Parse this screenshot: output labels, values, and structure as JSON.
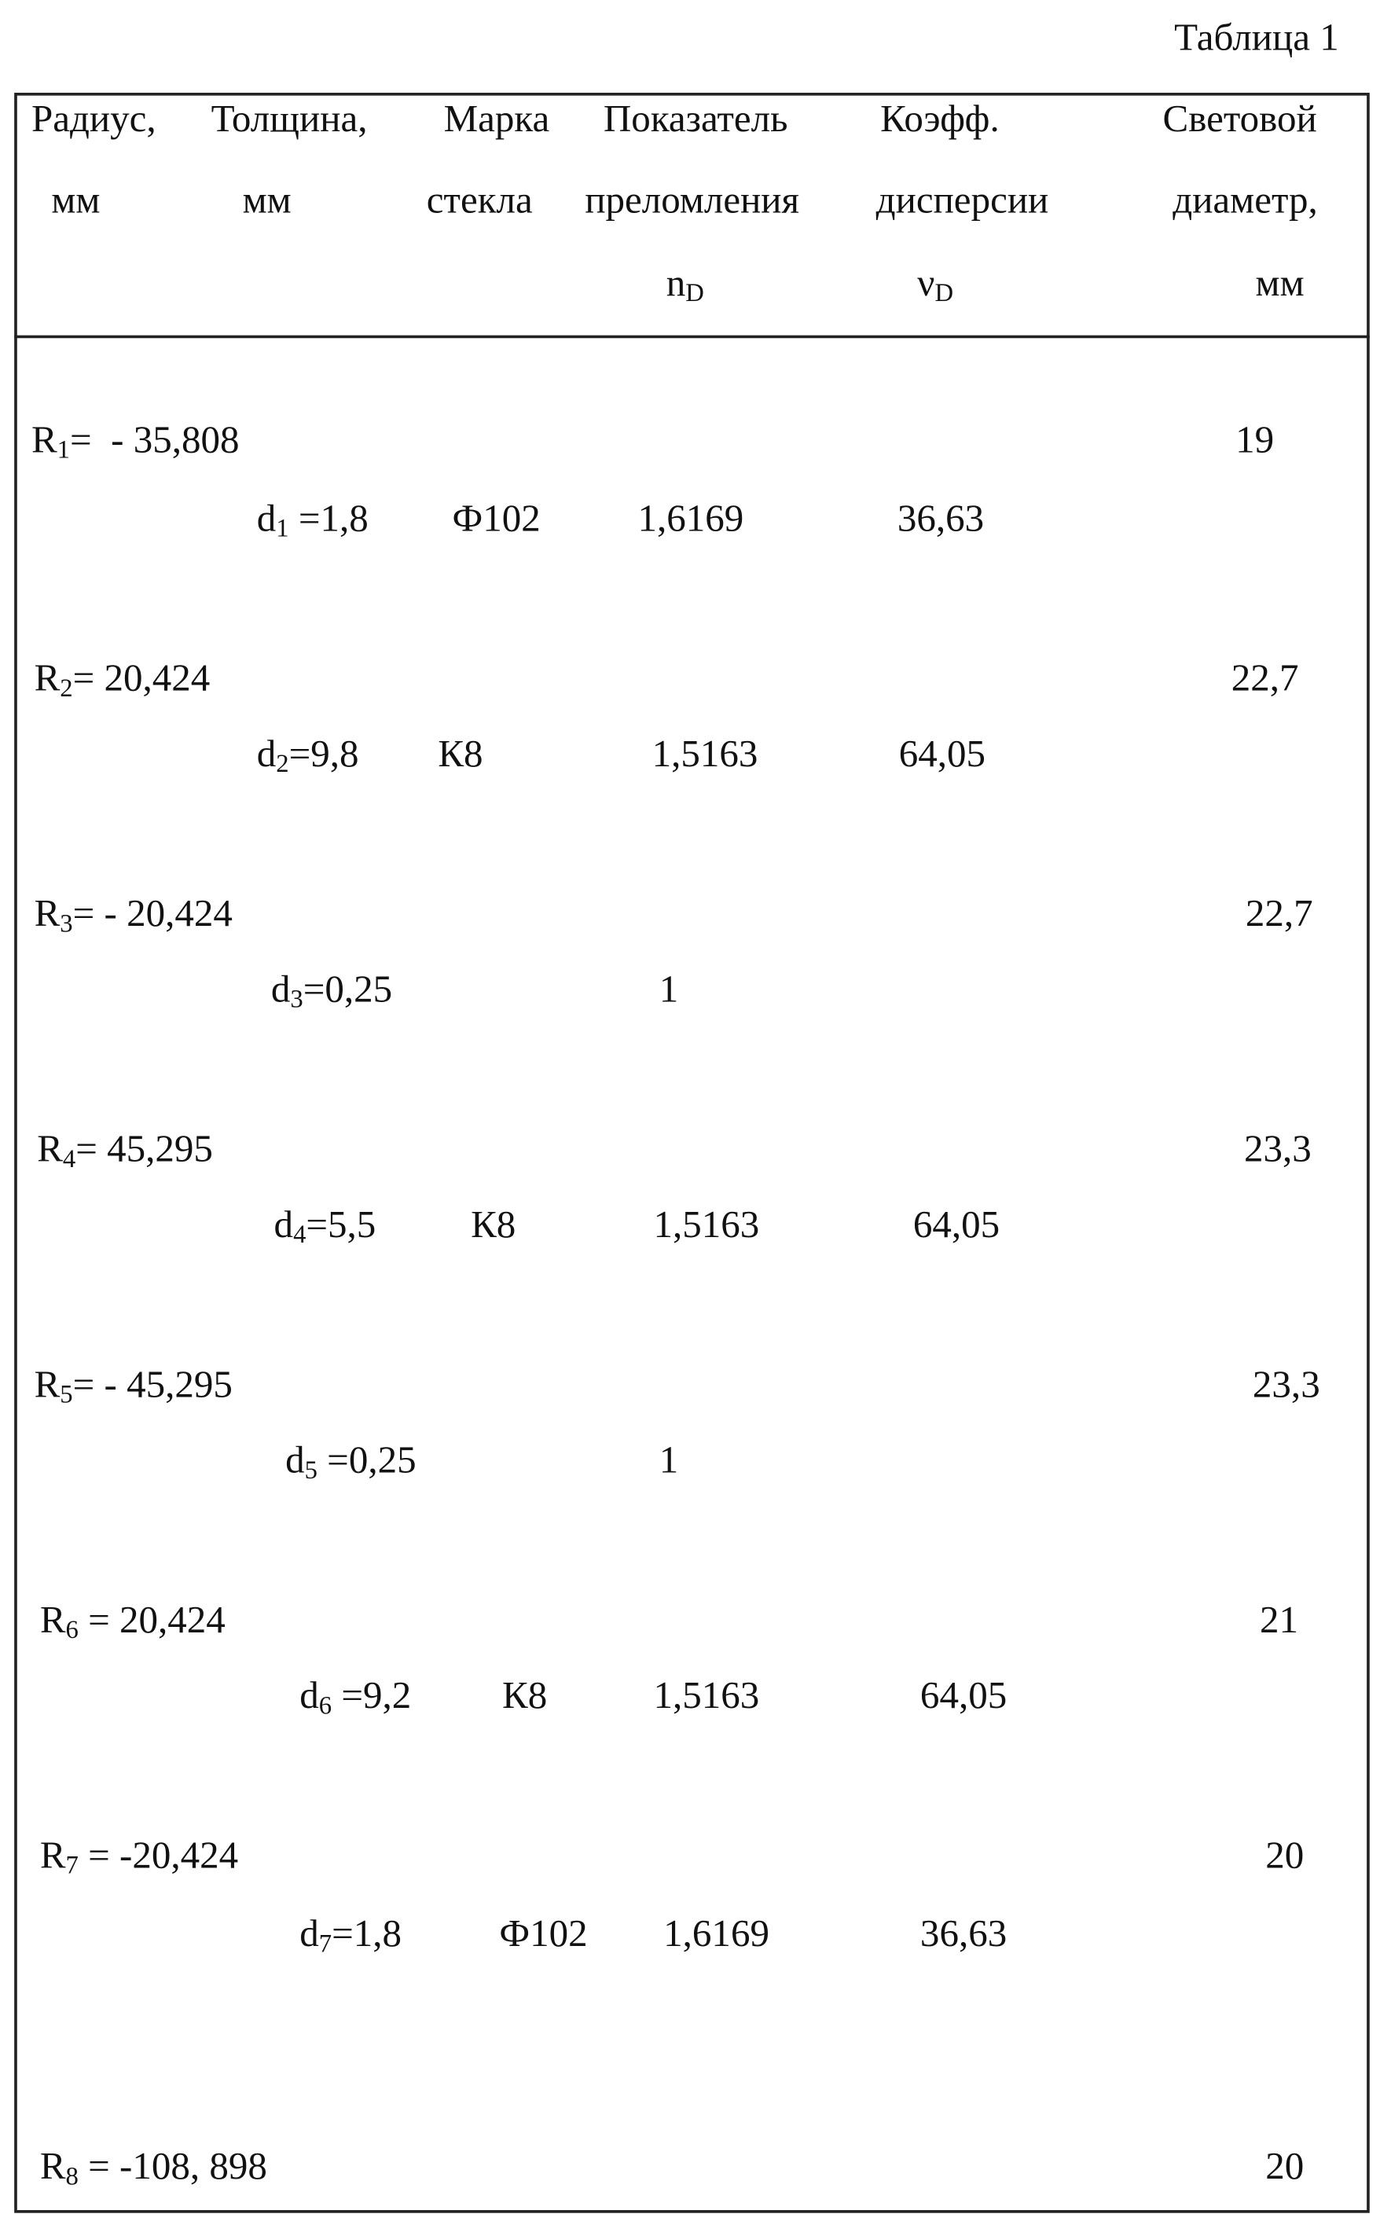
{
  "caption": "Таблица 1",
  "header": {
    "columns": [
      {
        "lines": [
          "Радиус,",
          "мм"
        ]
      },
      {
        "lines": [
          "Толщина,",
          "мм"
        ]
      },
      {
        "lines": [
          "Марка",
          "стекла"
        ]
      },
      {
        "lines": [
          "Показатель",
          "преломления"
        ],
        "symbol": "n",
        "index": "D"
      },
      {
        "lines": [
          "Коэфф.",
          "дисперсии"
        ],
        "symbol": "ν",
        "index": "D"
      },
      {
        "lines": [
          "Световой",
          "диаметр,",
          "мм"
        ]
      }
    ]
  },
  "surfaces": [
    {
      "symbol": "R",
      "index": "1",
      "value": "=  - 35,808",
      "diameter": "19"
    },
    {
      "symbol": "R",
      "index": "2",
      "value": "= 20,424",
      "diameter": "22,7"
    },
    {
      "symbol": "R",
      "index": "3",
      "value": "= - 20,424",
      "diameter": "22,7"
    },
    {
      "symbol": "R",
      "index": "4",
      "value": "= 45,295",
      "diameter": "23,3"
    },
    {
      "symbol": "R",
      "index": "5",
      "value": "= - 45,295",
      "diameter": "23,3"
    },
    {
      "symbol": "R",
      "index": "6",
      "value": " = 20,424",
      "diameter": "21"
    },
    {
      "symbol": "R",
      "index": "7",
      "value": " = -20,424",
      "diameter": "20"
    },
    {
      "symbol": "R",
      "index": "8",
      "value": " = -108, 898",
      "diameter": "20"
    }
  ],
  "gaps": [
    {
      "symbol": "d",
      "index": "1",
      "value": " =1,8",
      "glass": "Ф102",
      "n": "1,6169",
      "v": "36,63"
    },
    {
      "symbol": "d",
      "index": "2",
      "value": "=9,8",
      "glass": "К8",
      "n": "1,5163",
      "v": "64,05"
    },
    {
      "symbol": "d",
      "index": "3",
      "value": "=0,25",
      "n": "1"
    },
    {
      "symbol": "d",
      "index": "4",
      "value": "=5,5",
      "glass": "К8",
      "n": "1,5163",
      "v": "64,05"
    },
    {
      "symbol": "d",
      "index": "5",
      "value": " =0,25",
      "n": "1"
    },
    {
      "symbol": "d",
      "index": "6",
      "value": " =9,2",
      "glass": "К8",
      "n": "1,5163",
      "v": "64,05"
    },
    {
      "symbol": "d",
      "index": "7",
      "value": "=1,8",
      "glass": "Ф102",
      "n": "1,6169",
      "v": "36,63"
    }
  ]
}
